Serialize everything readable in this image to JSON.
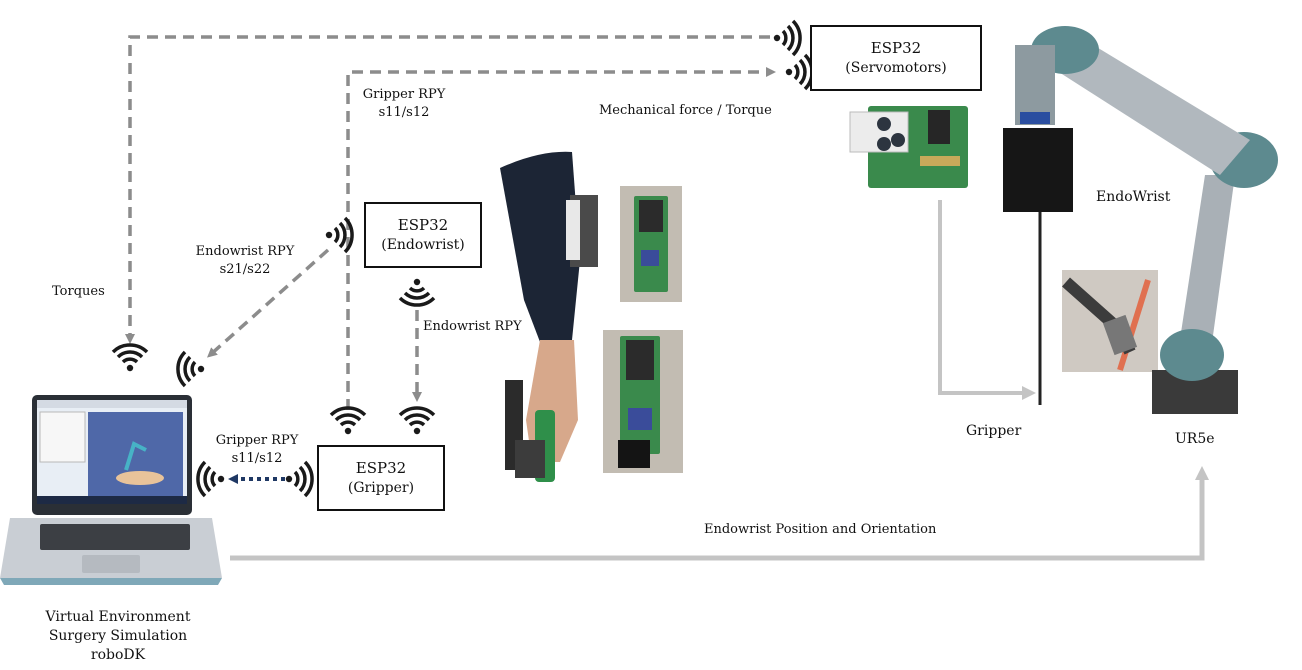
{
  "nodes": {
    "esp32_servo": {
      "title": "ESP32",
      "subtitle": "(Servomotors)"
    },
    "esp32_endowrist": {
      "title": "ESP32",
      "subtitle": "(Endowrist)"
    },
    "esp32_gripper": {
      "title": "ESP32",
      "subtitle": "(Gripper)"
    }
  },
  "labels": {
    "gripper_rpy_top_1": "Gripper RPY",
    "gripper_rpy_top_2": "s11/s12",
    "mechanical_force": "Mechanical force / Torque",
    "endowrist_rpy_1": "Endowrist RPY",
    "endowrist_rpy_2": "s21/s22",
    "torques": "Torques",
    "endowrist_rpy_mid": "Endowrist RPY",
    "gripper_rpy_bottom_1": "Gripper RPY",
    "gripper_rpy_bottom_2": "s11/s12",
    "endowrist_label": "EndoWrist",
    "gripper_label": "Gripper",
    "ur5e_label": "UR5e",
    "endowrist_pos_orient": "Endowrist Position and Orientation",
    "laptop_caption_1": "Virtual Environment",
    "laptop_caption_2": "Surgery Simulation",
    "laptop_caption_3": "roboDK"
  },
  "colors": {
    "dashed_arrow": "#8c8c8c",
    "solid_arrow": "#c4c4c4",
    "dotted_arrow": "#1f3864",
    "wifi": "#1a1a1a"
  }
}
